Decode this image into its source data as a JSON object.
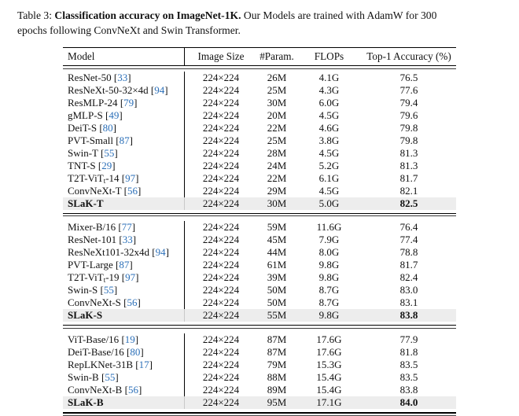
{
  "caption": {
    "prefix": "Table 3: ",
    "bold": "Classification accuracy on ImageNet-1K.",
    "rest_line1": " Our Models are trained with AdamW for 300",
    "rest_line2": "epochs following ConvNeXt and Swin Transformer."
  },
  "colors": {
    "citation_blue": "#2b6fb8",
    "highlight_gray": "#ededed",
    "text": "#111111"
  },
  "citation_format": {
    "open": "[",
    "close": "]"
  },
  "table": {
    "headers": [
      "Model",
      "Image Size",
      "#Param.",
      "FLOPs",
      "Top-1 Accuracy (%)"
    ],
    "sections": [
      {
        "rows": [
          {
            "model": "ResNet-50",
            "ref": "33",
            "size": "224×224",
            "params": "26M",
            "flops": "4.1G",
            "acc": "76.5",
            "hl": false
          },
          {
            "model": "ResNeXt-50-32×4d",
            "ref": "94",
            "size": "224×224",
            "params": "25M",
            "flops": "4.3G",
            "acc": "77.6",
            "hl": false
          },
          {
            "model": "ResMLP-24",
            "ref": "79",
            "size": "224×224",
            "params": "30M",
            "flops": "6.0G",
            "acc": "79.4",
            "hl": false
          },
          {
            "model": "gMLP-S",
            "ref": "49",
            "size": "224×224",
            "params": "20M",
            "flops": "4.5G",
            "acc": "79.6",
            "hl": false
          },
          {
            "model": "DeiT-S",
            "ref": "80",
            "size": "224×224",
            "params": "22M",
            "flops": "4.6G",
            "acc": "79.8",
            "hl": false
          },
          {
            "model": "PVT-Small",
            "ref": "87",
            "size": "224×224",
            "params": "25M",
            "flops": "3.8G",
            "acc": "79.8",
            "hl": false
          },
          {
            "model": "Swin-T",
            "ref": "55",
            "size": "224×224",
            "params": "28M",
            "flops": "4.5G",
            "acc": "81.3",
            "hl": false
          },
          {
            "model": "TNT-S",
            "ref": "29",
            "size": "224×224",
            "params": "24M",
            "flops": "5.2G",
            "acc": "81.3",
            "hl": false
          },
          {
            "model": "T2T-ViT_t-14",
            "ref": "97",
            "size": "224×224",
            "params": "22M",
            "flops": "6.1G",
            "acc": "81.7",
            "hl": false
          },
          {
            "model": "ConvNeXt-T",
            "ref": "56",
            "size": "224×224",
            "params": "29M",
            "flops": "4.5G",
            "acc": "82.1",
            "hl": false
          },
          {
            "model": "SLaK-T",
            "ref": null,
            "size": "224×224",
            "params": "30M",
            "flops": "5.0G",
            "acc": "82.5",
            "hl": true
          }
        ]
      },
      {
        "rows": [
          {
            "model": "Mixer-B/16",
            "ref": "77",
            "size": "224×224",
            "params": "59M",
            "flops": "11.6G",
            "acc": "76.4",
            "hl": false
          },
          {
            "model": "ResNet-101",
            "ref": "33",
            "size": "224×224",
            "params": "45M",
            "flops": "7.9G",
            "acc": "77.4",
            "hl": false
          },
          {
            "model": "ResNeXt101-32x4d",
            "ref": "94",
            "size": "224×224",
            "params": "44M",
            "flops": "8.0G",
            "acc": "78.8",
            "hl": false
          },
          {
            "model": "PVT-Large",
            "ref": "87",
            "size": "224×224",
            "params": "61M",
            "flops": "9.8G",
            "acc": "81.7",
            "hl": false
          },
          {
            "model": "T2T-ViT_t-19",
            "ref": "97",
            "size": "224×224",
            "params": "39M",
            "flops": "9.8G",
            "acc": "82.4",
            "hl": false
          },
          {
            "model": "Swin-S",
            "ref": "55",
            "size": "224×224",
            "params": "50M",
            "flops": "8.7G",
            "acc": "83.0",
            "hl": false
          },
          {
            "model": "ConvNeXt-S",
            "ref": "56",
            "size": "224×224",
            "params": "50M",
            "flops": "8.7G",
            "acc": "83.1",
            "hl": false
          },
          {
            "model": "SLaK-S",
            "ref": null,
            "size": "224×224",
            "params": "55M",
            "flops": "9.8G",
            "acc": "83.8",
            "hl": true
          }
        ]
      },
      {
        "rows": [
          {
            "model": "ViT-Base/16",
            "ref": "19",
            "size": "224×224",
            "params": "87M",
            "flops": "17.6G",
            "acc": "77.9",
            "hl": false
          },
          {
            "model": "DeiT-Base/16",
            "ref": "80",
            "size": "224×224",
            "params": "87M",
            "flops": "17.6G",
            "acc": "81.8",
            "hl": false
          },
          {
            "model": "RepLKNet-31B",
            "ref": "17",
            "size": "224×224",
            "params": "79M",
            "flops": "15.3G",
            "acc": "83.5",
            "hl": false
          },
          {
            "model": "Swin-B",
            "ref": "55",
            "size": "224×224",
            "params": "88M",
            "flops": "15.4G",
            "acc": "83.5",
            "hl": false
          },
          {
            "model": "ConvNeXt-B",
            "ref": "56",
            "size": "224×224",
            "params": "89M",
            "flops": "15.4G",
            "acc": "83.8",
            "hl": false
          },
          {
            "model": "SLaK-B",
            "ref": null,
            "size": "224×224",
            "params": "95M",
            "flops": "17.1G",
            "acc": "84.0",
            "hl": true
          }
        ]
      }
    ]
  }
}
